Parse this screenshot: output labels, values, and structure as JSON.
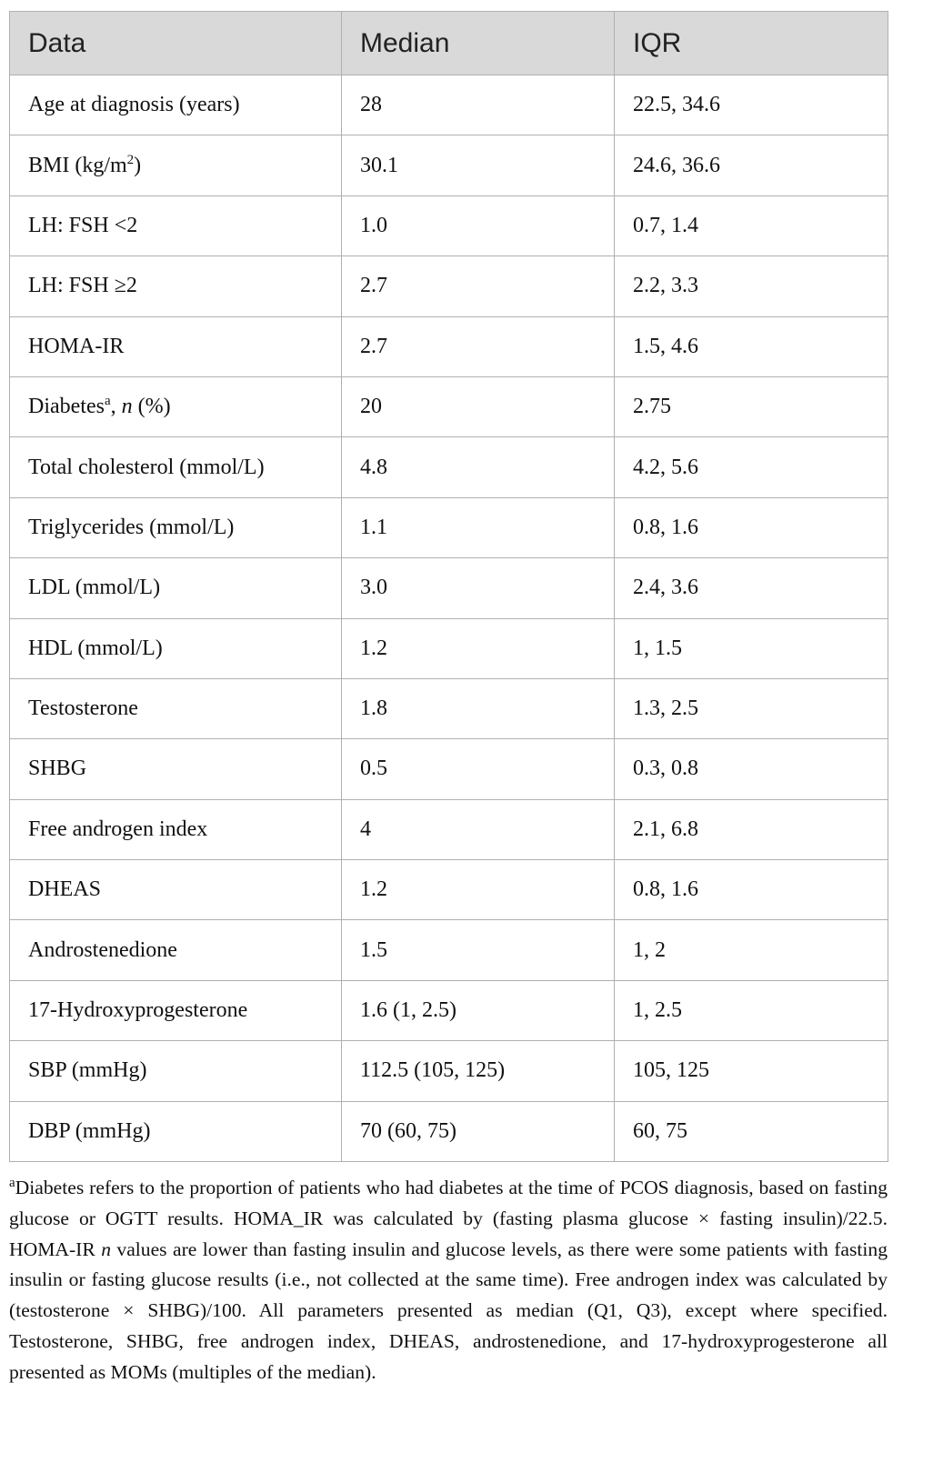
{
  "table": {
    "header": [
      "Data",
      "Median",
      "IQR"
    ],
    "rows": [
      [
        "Age at diagnosis (years)",
        "28",
        "22.5, 34.6"
      ],
      [
        [
          "BMI (kg/m",
          "2",
          ")"
        ],
        "30.1",
        "24.6, 36.6"
      ],
      [
        "LH: FSH <2",
        "1.0",
        "0.7, 1.4"
      ],
      [
        "LH: FSH ≥2",
        "2.7",
        "2.2, 3.3"
      ],
      [
        "HOMA-IR",
        "2.7",
        "1.5, 4.6"
      ],
      [
        [
          "Diabetes",
          "a",
          ", ",
          "n",
          " (%)"
        ],
        "20",
        "2.75"
      ],
      [
        "Total cholesterol (mmol/L)",
        "4.8",
        "4.2, 5.6"
      ],
      [
        "Triglycerides (mmol/L)",
        "1.1",
        "0.8, 1.6"
      ],
      [
        "LDL (mmol/L)",
        "3.0",
        "2.4, 3.6"
      ],
      [
        "HDL (mmol/L)",
        "1.2",
        "1, 1.5"
      ],
      [
        "Testosterone",
        "1.8",
        "1.3, 2.5"
      ],
      [
        "SHBG",
        "0.5",
        "0.3, 0.8"
      ],
      [
        "Free androgen index",
        "4",
        "2.1, 6.8"
      ],
      [
        "DHEAS",
        "1.2",
        "0.8, 1.6"
      ],
      [
        "Androstenedione",
        "1.5",
        "1, 2"
      ],
      [
        "17-Hydroxyprogesterone",
        "1.6 (1, 2.5)",
        "1, 2.5"
      ],
      [
        "SBP (mmHg)",
        "112.5 (105, 125)",
        "105, 125"
      ],
      [
        "DBP (mmHg)",
        "70 (60, 75)",
        "60, 75"
      ]
    ]
  },
  "footnote": [
    "a",
    "Diabetes refers to the proportion of patients who had diabetes at the time of PCOS diagnosis, based on fasting glucose or OGTT results. HOMA_IR was calculated by (fasting plasma glucose × fasting insulin)/22.5. HOMA-IR ",
    "n",
    " values are lower than fasting insulin and glucose levels, as there were some patients with fasting insulin or fasting glucose results (i.e., not collected at the same time). Free androgen index was calculated by (testosterone × SHBG)/100. All parameters presented as median (Q1, Q3), except where specified. Testosterone, SHBG, free androgen index, DHEAS, androstenedione, and 17-hydroxyprogesterone all presented as MOMs (multiples of the median)."
  ]
}
